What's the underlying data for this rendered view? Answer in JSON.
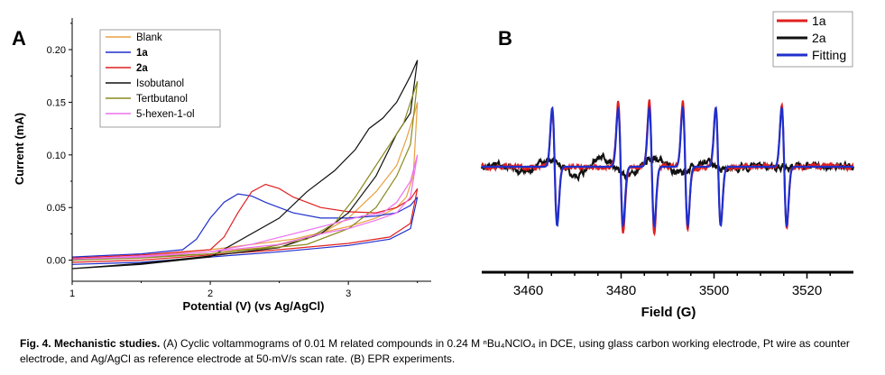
{
  "figure": {
    "caption": {
      "label": "Fig. 4. Mechanistic studies.",
      "text": " (A) Cyclic voltammograms of 0.01 M related compounds in 0.24 M ⁿBu₄NClO₄ in DCE, using glass carbon working electrode, Pt wire as counter electrode, and Ag/AgCl as reference electrode at 50-mV/s scan rate. (B) EPR experiments."
    }
  },
  "chart_data": [
    {
      "panel": "A",
      "type": "line",
      "xlabel": "Potential (V) (vs Ag/AgCl)",
      "ylabel": "Current (mA)",
      "xlim": [
        1.0,
        3.6
      ],
      "ylim": [
        -0.02,
        0.23
      ],
      "xticks": [
        1,
        2,
        3
      ],
      "yticks": [
        0.0,
        0.05,
        0.1,
        0.15,
        0.2
      ],
      "ytick_labels": [
        "0.00",
        "0.05",
        "0.10",
        "0.15",
        "0.20"
      ],
      "legend_position": "top-left",
      "series": [
        {
          "name": "Blank",
          "color": "#E8A040",
          "x": [
            1.0,
            1.5,
            2.0,
            2.4,
            2.8,
            3.0,
            3.2,
            3.35,
            3.42,
            3.48,
            3.5,
            3.47,
            3.42,
            3.35,
            3.2,
            3.0,
            2.6,
            2.0,
            1.5,
            1.0
          ],
          "y": [
            0.0,
            0.003,
            0.008,
            0.012,
            0.025,
            0.04,
            0.065,
            0.09,
            0.115,
            0.14,
            0.15,
            0.08,
            0.06,
            0.05,
            0.04,
            0.032,
            0.02,
            0.01,
            0.004,
            0.001
          ]
        },
        {
          "name": "1a",
          "color": "#1F2FCC",
          "x": [
            1.0,
            1.5,
            1.8,
            1.9,
            2.0,
            2.1,
            2.2,
            2.3,
            2.4,
            2.6,
            2.8,
            3.0,
            3.2,
            3.35,
            3.45,
            3.5,
            3.45,
            3.3,
            3.0,
            2.5,
            2.0,
            1.5,
            1.0
          ],
          "y": [
            0.003,
            0.006,
            0.01,
            0.02,
            0.04,
            0.055,
            0.063,
            0.061,
            0.055,
            0.045,
            0.04,
            0.04,
            0.042,
            0.045,
            0.052,
            0.06,
            0.03,
            0.02,
            0.014,
            0.008,
            0.003,
            -0.002,
            -0.004
          ]
        },
        {
          "name": "2a",
          "color": "#E02020",
          "x": [
            1.0,
            1.5,
            2.0,
            2.1,
            2.2,
            2.3,
            2.4,
            2.5,
            2.6,
            2.8,
            3.0,
            3.2,
            3.35,
            3.45,
            3.5,
            3.45,
            3.3,
            3.0,
            2.5,
            2.0,
            1.5,
            1.0
          ],
          "y": [
            0.002,
            0.005,
            0.01,
            0.022,
            0.045,
            0.065,
            0.072,
            0.068,
            0.06,
            0.05,
            0.046,
            0.045,
            0.05,
            0.058,
            0.068,
            0.035,
            0.022,
            0.016,
            0.01,
            0.005,
            0.0,
            -0.002
          ]
        },
        {
          "name": "Isobutanol",
          "color": "#111111",
          "x": [
            1.0,
            1.5,
            2.0,
            2.5,
            2.7,
            2.9,
            3.05,
            3.15,
            3.25,
            3.35,
            3.45,
            3.5,
            3.45,
            3.35,
            3.2,
            3.0,
            2.8,
            2.5,
            2.0,
            1.5,
            1.0
          ],
          "y": [
            -0.008,
            -0.004,
            0.003,
            0.04,
            0.065,
            0.085,
            0.105,
            0.125,
            0.135,
            0.15,
            0.175,
            0.19,
            0.14,
            0.12,
            0.08,
            0.045,
            0.025,
            0.012,
            0.004,
            -0.003,
            -0.008
          ]
        },
        {
          "name": "Tertbutanol",
          "color": "#8A8A20",
          "x": [
            1.0,
            1.5,
            2.0,
            2.4,
            2.7,
            2.9,
            3.05,
            3.2,
            3.3,
            3.4,
            3.45,
            3.5,
            3.45,
            3.35,
            3.2,
            3.0,
            2.7,
            2.3,
            2.0,
            1.5,
            1.0
          ],
          "y": [
            0.0,
            0.003,
            0.006,
            0.012,
            0.02,
            0.035,
            0.06,
            0.09,
            0.11,
            0.13,
            0.15,
            0.17,
            0.11,
            0.08,
            0.05,
            0.03,
            0.015,
            0.01,
            0.006,
            0.002,
            0.0
          ]
        },
        {
          "name": "5-hexen-1-ol",
          "color": "#EE70EE",
          "x": [
            1.0,
            1.5,
            2.0,
            2.3,
            2.6,
            2.9,
            3.1,
            3.25,
            3.35,
            3.45,
            3.5,
            3.45,
            3.35,
            3.2,
            3.0,
            2.8,
            2.5,
            2.0,
            1.5,
            1.0
          ],
          "y": [
            0.001,
            0.004,
            0.008,
            0.015,
            0.025,
            0.035,
            0.042,
            0.045,
            0.055,
            0.075,
            0.1,
            0.06,
            0.045,
            0.038,
            0.03,
            0.025,
            0.015,
            0.008,
            0.003,
            0.001
          ]
        }
      ]
    },
    {
      "panel": "B",
      "type": "line",
      "xlabel": "Field (G)",
      "ylabel": "",
      "xlim": [
        3450,
        3530
      ],
      "ylim": [
        -1.15,
        1.15
      ],
      "xticks": [
        3460,
        3480,
        3500,
        3520
      ],
      "yticks_shown": false,
      "legend_position": "top-right",
      "series": [
        {
          "name": "1a",
          "color": "#E02020",
          "centers": [
            3465.7,
            3479.9,
            3486.6,
            3493.8,
            3500.9,
            3515.1
          ],
          "amplitudes": [
            0.92,
            1.12,
            1.12,
            1.1,
            1.0,
            1.04
          ],
          "width": 0.75,
          "noise": 0.06
        },
        {
          "name": "2a",
          "color": "#111111",
          "centers": [],
          "amplitudes": [],
          "width": 0.75,
          "noise": 0.1
        },
        {
          "name": "Fitting",
          "color": "#1F2FCC",
          "centers": [
            3465.7,
            3479.9,
            3486.6,
            3493.8,
            3500.9,
            3515.1
          ],
          "amplitudes": [
            1.0,
            1.0,
            1.0,
            1.0,
            1.0,
            1.0
          ],
          "width": 0.75,
          "noise": 0.0
        }
      ]
    }
  ]
}
